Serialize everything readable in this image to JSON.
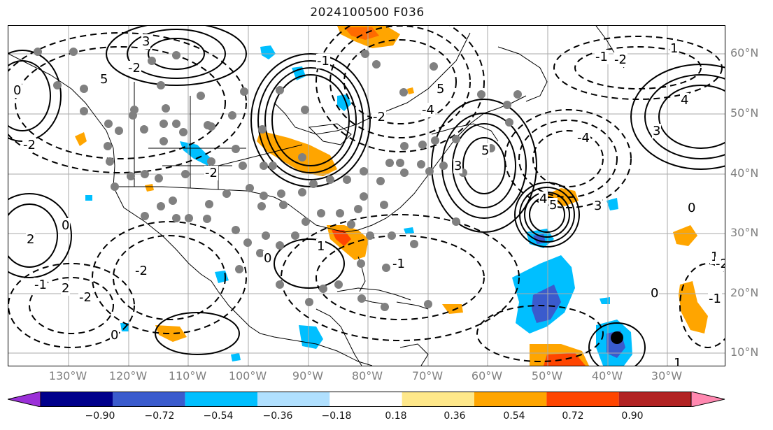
{
  "title": "2024100500 F036",
  "lat_labels": [
    "60°N",
    "50°N",
    "40°N",
    "30°N",
    "20°N",
    "10°N"
  ],
  "lon_labels": [
    "130°W",
    "120°W",
    "110°W",
    "100°W",
    "90°W",
    "80°W",
    "70°W",
    "60°W",
    "50°W",
    "40°W",
    "30°W"
  ],
  "colorbar": {
    "ticks": [
      "−0.90",
      "−0.72",
      "−0.54",
      "−0.36",
      "−0.18",
      "0.18",
      "0.36",
      "0.54",
      "0.72",
      "0.90"
    ],
    "colors": [
      "#9b30d8",
      "#00008b",
      "#3a5bcd",
      "#00bfff",
      "#b0e0ff",
      "#ffffff",
      "#ffe88a",
      "#ffa500",
      "#ff4500",
      "#b22222",
      "#ff88b0"
    ]
  },
  "contour_labels": [
    "3",
    "-2",
    "0",
    "5",
    "-2",
    "-1",
    "5",
    "-4",
    "-2",
    "-2",
    "2",
    "0",
    "-2",
    "1",
    "2",
    "-2",
    "-1",
    "0",
    "0",
    "5",
    "-4",
    "3",
    "4",
    "5",
    "3",
    "0",
    "1",
    "-2",
    "1",
    "-1",
    "-1",
    "0",
    "3",
    "4",
    "1",
    "-2",
    "-1"
  ],
  "map_colors": {
    "grid": "#aaaaaa",
    "coast": "#000000",
    "station": "#808080",
    "contour": "#000000"
  }
}
